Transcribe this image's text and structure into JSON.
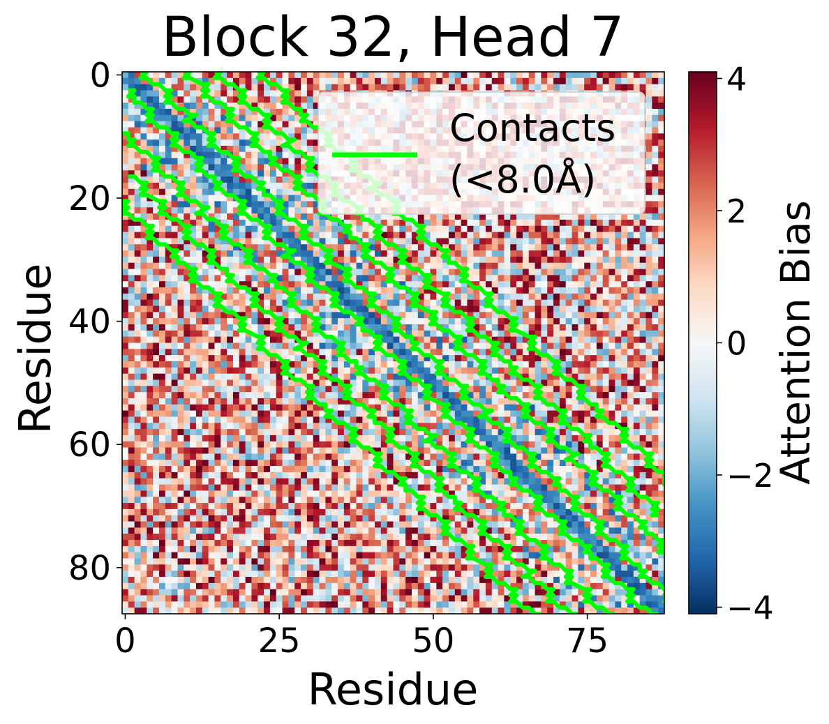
{
  "chart_data": {
    "type": "heatmap",
    "title": "Block 32, Head 7",
    "xlabel": "Residue",
    "ylabel": "Residue",
    "n_residues": 88,
    "x_ticks": [
      0,
      25,
      50,
      75
    ],
    "y_ticks": [
      0,
      20,
      40,
      60,
      80
    ],
    "colorbar": {
      "label": "Attention Bias",
      "range": [
        -4.1,
        4.1
      ],
      "ticks": [
        4,
        2,
        0,
        -2,
        -4
      ],
      "tick_labels": [
        "4",
        "2",
        "0",
        "−2",
        "−4"
      ],
      "colormap": "RdBu_r",
      "colors": [
        "#053061",
        "#2166ac",
        "#4393c3",
        "#92c5de",
        "#d1e5f0",
        "#f7f7f7",
        "#fddbc7",
        "#f4a582",
        "#d6604d",
        "#b2182b",
        "#67001f"
      ]
    },
    "legend": {
      "label_line1": "Contacts",
      "label_line2": "(<8.0Å)",
      "placement": "upper right",
      "color": "#00ff00"
    },
    "contact_outline": {
      "color": "#00ff00",
      "description": "Contour lines enclosing residue pairs within 8.0Å, running parallel to the diagonal",
      "bands": [
        {
          "upper_offset": -16,
          "lower_offset": -22
        },
        {
          "upper_offset": -3,
          "lower_offset": -10
        },
        {
          "upper_offset": 10,
          "lower_offset": 3
        },
        {
          "upper_offset": 22,
          "lower_offset": 15
        }
      ]
    }
  }
}
